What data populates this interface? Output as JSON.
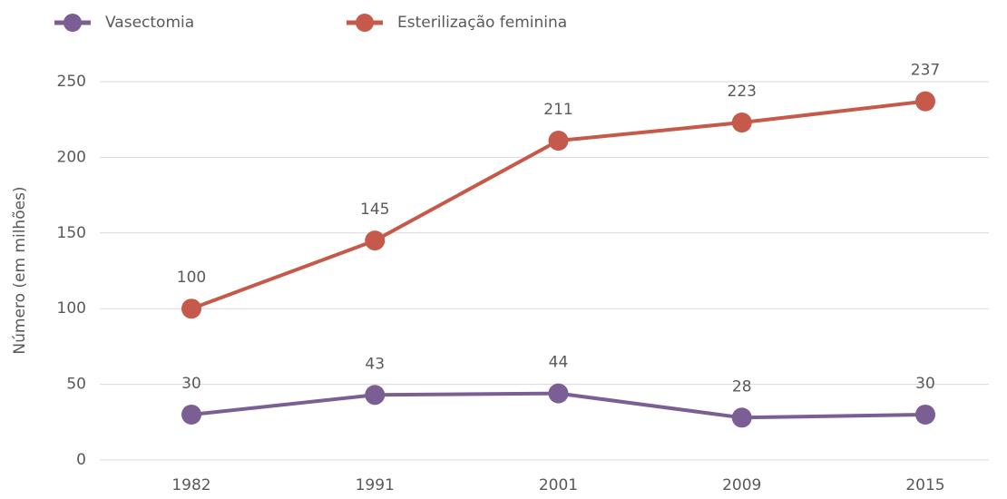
{
  "chart_data": {
    "type": "line",
    "y_label": "Número (em milhões)",
    "categories": [
      "1982",
      "1991",
      "2001",
      "2009",
      "2015"
    ],
    "series": [
      {
        "name": "Vasectomia",
        "color": "#7b5e93",
        "values": [
          30,
          43,
          44,
          28,
          30
        ]
      },
      {
        "name": "Esterilização feminina",
        "color": "#c55a4a",
        "values": [
          100,
          145,
          211,
          223,
          237
        ]
      }
    ],
    "ylim": [
      0,
      250
    ],
    "yticks": [
      0,
      50,
      100,
      150,
      200,
      250
    ],
    "grid": true,
    "legend": "top-left"
  }
}
